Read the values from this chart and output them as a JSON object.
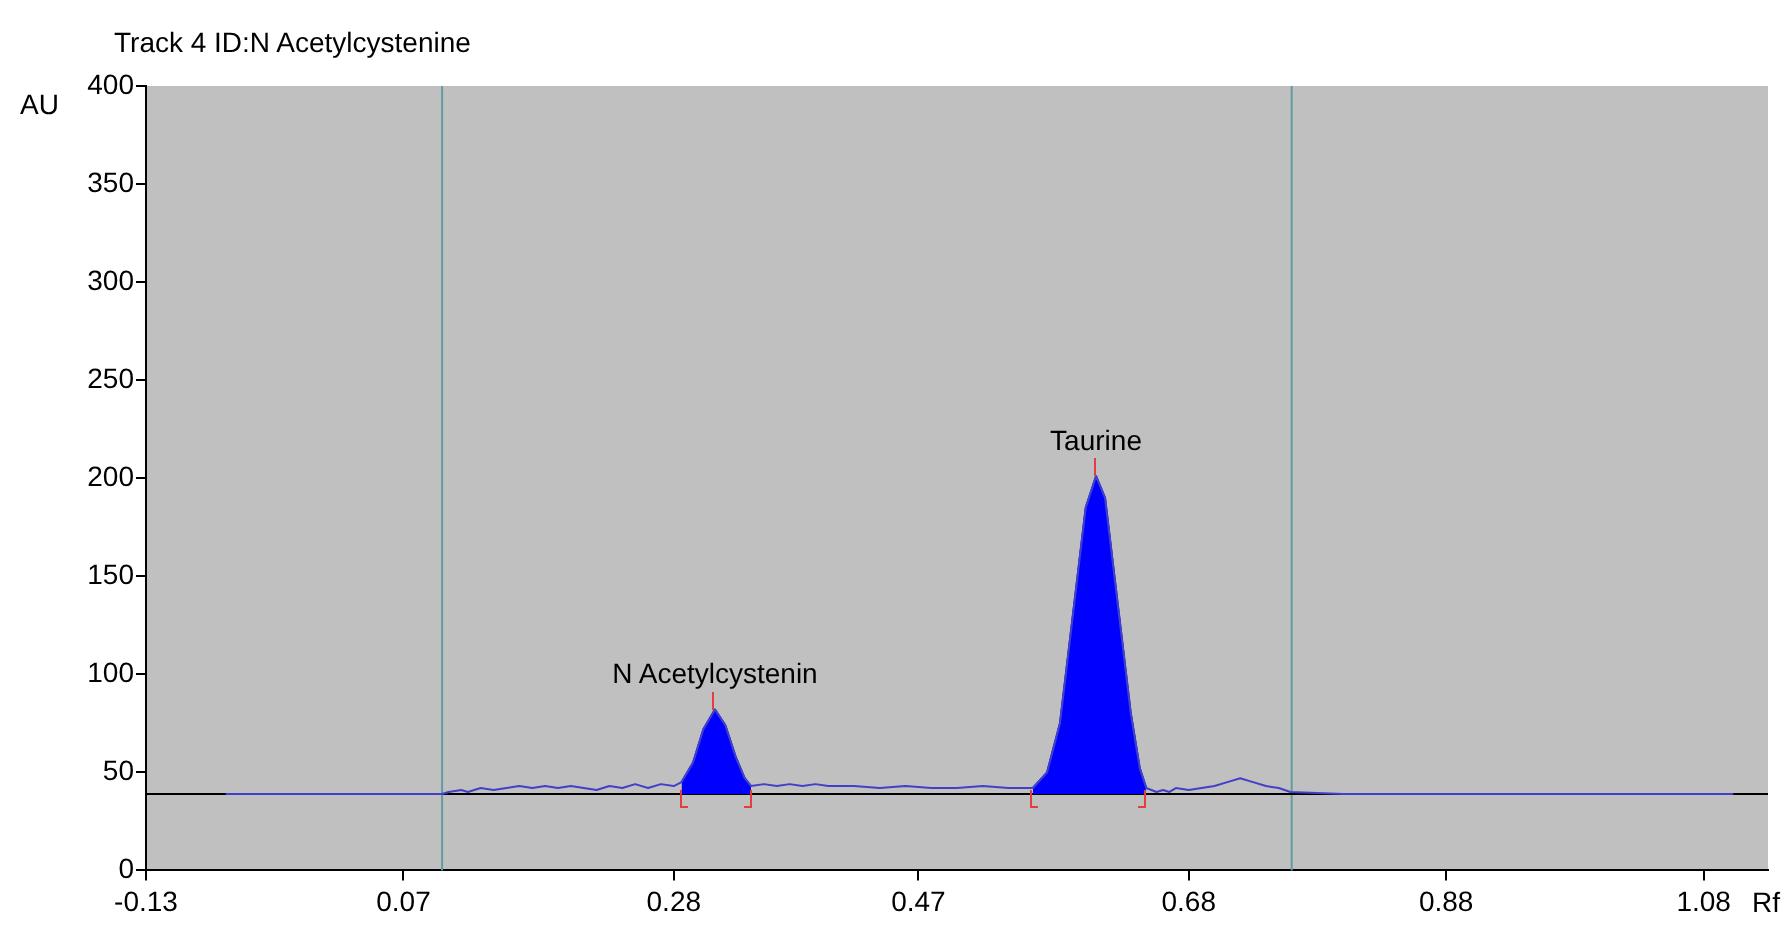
{
  "chart_data": {
    "type": "line",
    "title": "Track 4 ID:N Acetylcystenine",
    "xlabel": "Rf",
    "ylabel": "AU",
    "xlim": [
      -0.13,
      1.13
    ],
    "xticks": [
      -0.13,
      0.07,
      0.28,
      0.47,
      0.68,
      0.88,
      1.08
    ],
    "ylim": [
      0,
      400
    ],
    "yticks": [
      0,
      50,
      100,
      150,
      200,
      250,
      300,
      350,
      400
    ],
    "grid": false,
    "legend": false,
    "marker": "none",
    "line_style": "solid",
    "series": [
      {
        "type": "line",
        "color": "#4040c8",
        "x": [
          -0.068,
          0.1,
          0.105,
          0.115,
          0.12,
          0.13,
          0.14,
          0.15,
          0.16,
          0.17,
          0.18,
          0.19,
          0.2,
          0.21,
          0.22,
          0.23,
          0.24,
          0.25,
          0.26,
          0.27,
          0.28,
          0.286,
          0.295,
          0.303,
          0.312,
          0.32,
          0.328,
          0.335,
          0.34,
          0.35,
          0.36,
          0.37,
          0.38,
          0.39,
          0.4,
          0.42,
          0.44,
          0.46,
          0.48,
          0.5,
          0.52,
          0.54,
          0.559,
          0.57,
          0.58,
          0.59,
          0.6,
          0.608,
          0.615,
          0.625,
          0.635,
          0.642,
          0.647,
          0.655,
          0.66,
          0.665,
          0.67,
          0.68,
          0.69,
          0.7,
          0.71,
          0.72,
          0.73,
          0.74,
          0.75,
          0.759,
          0.8,
          1.103
        ],
        "values": [
          39,
          39,
          40,
          41,
          40,
          42,
          41,
          42,
          43,
          42,
          43,
          42,
          43,
          42,
          41,
          43,
          42,
          44,
          42,
          44,
          43,
          45,
          55,
          72,
          82,
          74,
          58,
          47,
          43,
          44,
          43,
          44,
          43,
          44,
          43,
          43,
          42,
          43,
          42,
          42,
          43,
          42,
          42,
          50,
          75,
          130,
          185,
          201,
          190,
          135,
          80,
          52,
          42,
          40,
          41,
          40,
          42,
          41,
          42,
          43,
          45,
          47,
          45,
          43,
          42,
          40,
          39,
          39
        ]
      },
      {
        "type": "area",
        "color": "#0000ff",
        "x": [
          0.286,
          0.295,
          0.303,
          0.312,
          0.32,
          0.328,
          0.335,
          0.34
        ],
        "values": [
          45,
          55,
          72,
          82,
          74,
          58,
          47,
          43
        ]
      },
      {
        "type": "area",
        "color": "#0000ff",
        "x": [
          0.559,
          0.57,
          0.58,
          0.59,
          0.6,
          0.608,
          0.615,
          0.625,
          0.635,
          0.642,
          0.647
        ],
        "values": [
          42,
          50,
          75,
          130,
          185,
          201,
          190,
          135,
          80,
          52,
          42
        ]
      }
    ],
    "ref_lines": [
      {
        "axis": "x",
        "value": 0.1,
        "color": "#5f9ea0"
      },
      {
        "axis": "x",
        "value": 0.76,
        "color": "#5f9ea0"
      },
      {
        "axis": "y",
        "value": 39,
        "color": "#000000"
      }
    ],
    "annotations": [
      {
        "text": "N Acetylcystenin",
        "x": 0.312,
        "y": 82
      },
      {
        "text": "Taurine",
        "x": 0.608,
        "y": 201
      }
    ]
  }
}
